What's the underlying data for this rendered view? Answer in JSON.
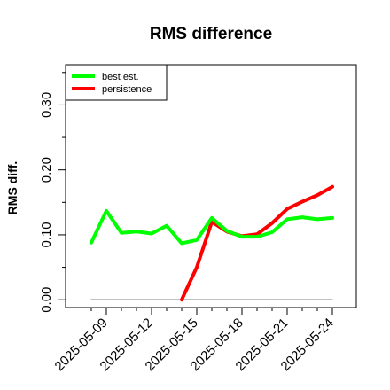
{
  "chart_data": {
    "type": "line",
    "title": "RMS difference",
    "xlabel": "",
    "ylabel": "RMS diff.",
    "x": [
      "2025-05-08",
      "2025-05-09",
      "2025-05-10",
      "2025-05-11",
      "2025-05-12",
      "2025-05-13",
      "2025-05-14",
      "2025-05-15",
      "2025-05-16",
      "2025-05-17",
      "2025-05-18",
      "2025-05-19",
      "2025-05-20",
      "2025-05-21",
      "2025-05-22",
      "2025-05-23",
      "2025-05-24"
    ],
    "x_tick_labels": [
      "2025-05-09",
      "2025-05-12",
      "2025-05-15",
      "2025-05-18",
      "2025-05-21",
      "2025-05-24"
    ],
    "y_ticks": [
      "0.00",
      "0.10",
      "0.20",
      "0.30"
    ],
    "ylim": [
      -0.012,
      0.362
    ],
    "series": [
      {
        "name": "best est.",
        "color": "#00ff00",
        "values": [
          0.088,
          0.137,
          0.103,
          0.105,
          0.102,
          0.114,
          0.087,
          0.092,
          0.126,
          0.106,
          0.097,
          0.097,
          0.104,
          0.124,
          0.127,
          0.124,
          0.126
        ]
      },
      {
        "name": "persistence",
        "color": "#ff0000",
        "values": [
          null,
          null,
          null,
          null,
          null,
          null,
          0.0,
          0.05,
          0.12,
          0.105,
          0.098,
          0.101,
          0.118,
          0.14,
          0.151,
          0.161,
          0.174
        ]
      },
      {
        "name": "",
        "color": "#808080",
        "values": [
          0.0,
          0.0,
          0.0,
          0.0,
          0.0,
          0.0,
          0.0,
          0.0,
          0.0,
          0.0,
          0.0,
          0.0,
          0.0,
          0.0,
          0.0,
          0.0,
          0.0
        ]
      }
    ],
    "legend_position": "top-left",
    "grid": false
  }
}
